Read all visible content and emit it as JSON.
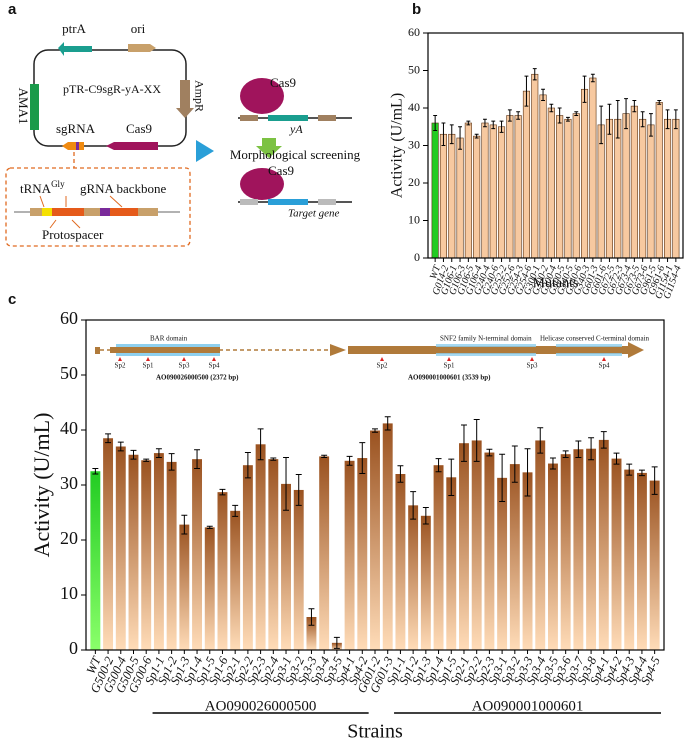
{
  "panel_labels": [
    "a",
    "b",
    "c"
  ],
  "diagram": {
    "ptrA": "ptrA",
    "ori": "ori",
    "ama1": "AMA1",
    "plasmid": "pTR-C9sgR-yA-XX",
    "ampr": "AmpR",
    "sgrna": "sgRNA",
    "cas9": "Cas9",
    "trna": "tRNA",
    "trna_sup": "Gly",
    "backbone": "gRNA backbone",
    "protospacer": "Protospacer",
    "cas9_top": "Cas9",
    "ya": "yA",
    "screening": "Morphological screening",
    "cas9_bottom": "Cas9",
    "target": "Target gene"
  },
  "inset": {
    "domain1": "BAR domain",
    "gene1_sites": [
      "Sp2",
      "Sp1",
      "Sp3",
      "Sp4"
    ],
    "gene1": "AO090026000500 (2372 bp)",
    "domain2": "SNF2 family N-terminal domain",
    "domain3": "Helicase conserved C-terminal domain",
    "gene2_sites": [
      "Sp2",
      "Sp1",
      "Sp3",
      "Sp4"
    ],
    "gene2": "AO090001000601 (3539 bp)"
  },
  "chart_data": [
    {
      "type": "bar",
      "y_label": "Activity (U/mL)",
      "x_label": "Mutants",
      "categories": [
        "WT",
        "G014-2",
        "G106-1",
        "G106-3",
        "G106-5",
        "G106-4",
        "G240-4",
        "G240-6",
        "G252-2",
        "G252-6",
        "G254-3",
        "G254-6",
        "G300-1",
        "G300-2",
        "G300-4",
        "G300-5",
        "G340-5",
        "G340-6",
        "G340-3",
        "G601-3",
        "G601-6",
        "G672-5",
        "G672-3",
        "G673-4",
        "G673-5",
        "G673-6",
        "G961-5",
        "G961-6",
        "G1154-1",
        "G1154-4"
      ],
      "values": [
        36,
        33,
        33,
        32,
        36,
        32.5,
        36,
        35.5,
        35,
        38,
        38,
        44.5,
        49,
        43.5,
        40,
        38,
        37,
        38.5,
        45,
        48,
        35.5,
        37,
        37,
        38.5,
        40.5,
        37,
        35.5,
        41.5,
        37,
        37
      ],
      "errors": [
        2,
        3,
        2.5,
        3,
        0.5,
        0.5,
        1,
        1,
        1.5,
        1.5,
        1,
        4,
        1.5,
        1.5,
        1,
        2,
        0.5,
        0.5,
        3.5,
        1,
        5,
        4,
        5,
        4,
        1.5,
        2,
        3,
        0.5,
        2.5,
        2.5
      ],
      "color": "#f7c9a0",
      "first_color": "#22cc22",
      "ylim": [
        0,
        60
      ],
      "yticks": [
        0,
        10,
        20,
        30,
        40,
        50,
        60
      ]
    },
    {
      "type": "bar",
      "y_label": "Activity (U/mL)",
      "x_label": "Strains",
      "groups": [
        "AO090026000500",
        "AO090001000601"
      ],
      "categories": [
        "WT",
        "G500-2",
        "G500-4",
        "G500-5",
        "G500-6",
        "Sp1-1",
        "Sp1-2",
        "Sp1-3",
        "Sp1-4",
        "Sp1-5",
        "Sp1-6",
        "Sp2-1",
        "Sp2-2",
        "Sp2-3",
        "Sp2-4",
        "Sp3-1",
        "Sp3-2",
        "Sp3-3",
        "Sp3-4",
        "Sp3-5",
        "Sp4-1",
        "Sp4-2",
        "G601-2",
        "G601-3",
        "Sp1-1",
        "Sp1-2",
        "Sp1-3",
        "Sp1-4",
        "Sp1-5",
        "Sp2-1",
        "Sp2-2",
        "Sp2-3",
        "Sp3-1",
        "Sp3-2",
        "Sp3-3",
        "Sp3-4",
        "Sp3-5",
        "Sp3-6",
        "Sp3-7",
        "Sp3-8",
        "Sp4-1",
        "Sp4-2",
        "Sp4-3",
        "Sp4-4",
        "Sp4-5"
      ],
      "values": [
        32.5,
        38.5,
        37,
        35.5,
        34.5,
        35.8,
        34.2,
        22.8,
        34.7,
        22.3,
        28.7,
        25.3,
        33.6,
        37.4,
        34.7,
        30.2,
        29.1,
        6,
        35.2,
        1.3,
        34.4,
        34.9,
        39.9,
        41.2,
        32,
        26.3,
        24.4,
        33.6,
        31.4,
        37.6,
        38.1,
        35.9,
        31.3,
        33.8,
        32.3,
        38.1,
        33.9,
        35.6,
        36.5,
        36.6,
        38.2,
        34.8,
        32.8,
        32.2,
        30.8
      ],
      "errors": [
        0.5,
        0.8,
        0.8,
        0.8,
        0.2,
        0.8,
        1.5,
        1.7,
        1.7,
        0.2,
        0.5,
        1,
        2.3,
        2.8,
        0.2,
        4.8,
        2.8,
        1.5,
        0.2,
        1,
        0.8,
        2.8,
        0.3,
        1.2,
        1.5,
        2.5,
        1.5,
        1.2,
        3.3,
        3.3,
        3.8,
        0.6,
        4.3,
        3.3,
        4.3,
        2.3,
        1,
        0.6,
        1.5,
        2,
        1.5,
        1,
        1,
        0.5,
        2.5
      ],
      "color": "#9a5220",
      "color_light": "#ffdcb8",
      "first_color": "#22cc22",
      "ylim": [
        0,
        60
      ],
      "yticks": [
        0,
        10,
        20,
        30,
        40,
        50,
        60
      ]
    }
  ]
}
